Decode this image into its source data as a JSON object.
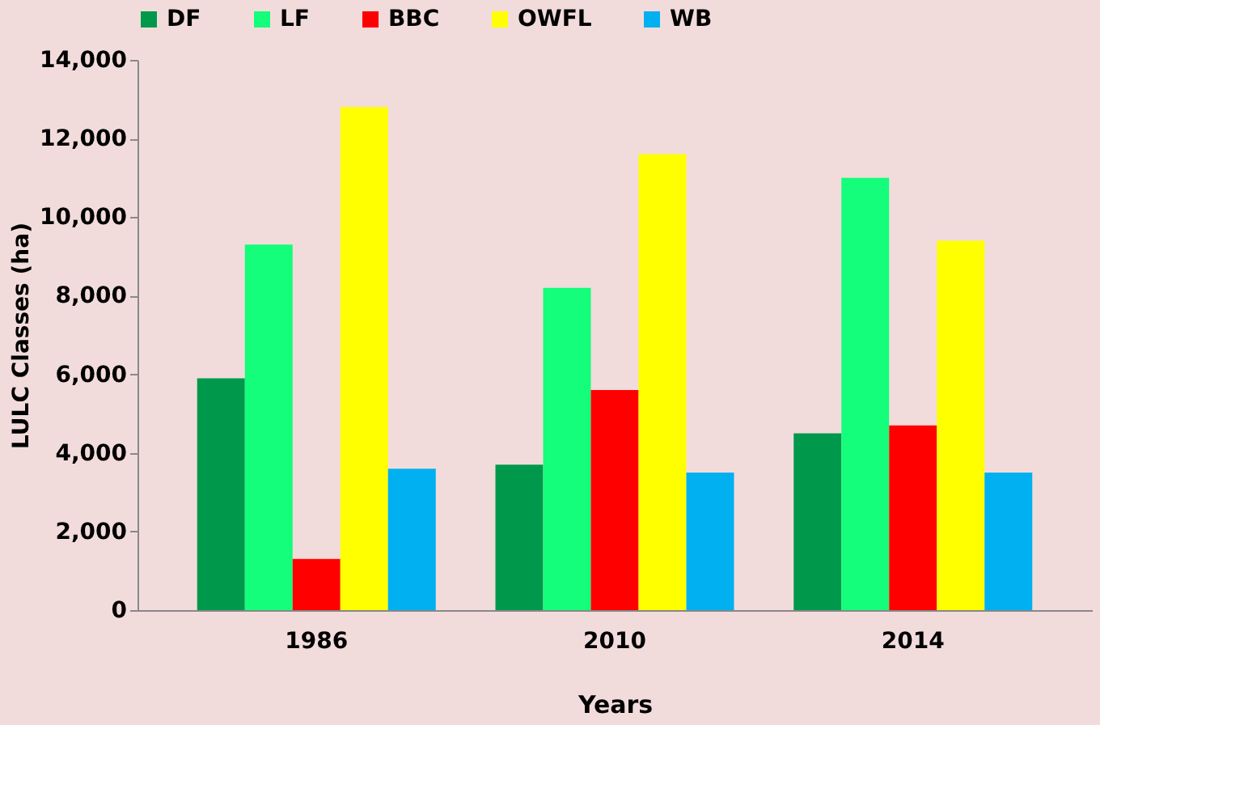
{
  "chart_data": {
    "type": "bar",
    "xlabel": "Years",
    "ylabel": "LULC Classes (ha)",
    "categories": [
      "1986",
      "2010",
      "2014"
    ],
    "series": [
      {
        "name": "DF",
        "color": "#00994c",
        "values": [
          5900,
          3700,
          4500
        ]
      },
      {
        "name": "LF",
        "color": "#14fd7b",
        "values": [
          9300,
          8200,
          11000
        ]
      },
      {
        "name": "BBC",
        "color": "#ff0000",
        "values": [
          1300,
          5600,
          4700
        ]
      },
      {
        "name": "OWFL",
        "color": "#ffff00",
        "values": [
          12800,
          11600,
          9400
        ]
      },
      {
        "name": "WB",
        "color": "#00b0f0",
        "values": [
          3600,
          3500,
          3500
        ]
      }
    ],
    "ylim": [
      0,
      14000
    ],
    "yticks": [
      {
        "value": 0,
        "label": "0"
      },
      {
        "value": 2000,
        "label": "2,000"
      },
      {
        "value": 4000,
        "label": "4,000"
      },
      {
        "value": 6000,
        "label": "6,000"
      },
      {
        "value": 8000,
        "label": "8,000"
      },
      {
        "value": 10000,
        "label": "10,000"
      },
      {
        "value": 12000,
        "label": "12,000"
      },
      {
        "value": 14000,
        "label": "14,000"
      }
    ],
    "grid": false,
    "legend": "top"
  }
}
